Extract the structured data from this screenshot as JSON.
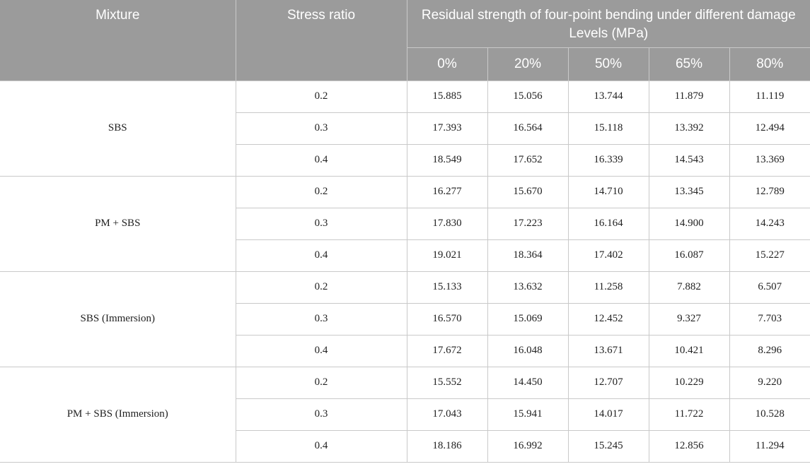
{
  "header": {
    "mixture": "Mixture",
    "stress_ratio": "Stress ratio",
    "group": "Residual strength of four-point bending under different damage Levels (MPa)",
    "levels": [
      "0%",
      "20%",
      "50%",
      "65%",
      "80%"
    ]
  },
  "groups": [
    {
      "mixture": "SBS",
      "rows": [
        {
          "ratio": "0.2",
          "values": [
            "15.885",
            "15.056",
            "13.744",
            "11.879",
            "11.119"
          ]
        },
        {
          "ratio": "0.3",
          "values": [
            "17.393",
            "16.564",
            "15.118",
            "13.392",
            "12.494"
          ]
        },
        {
          "ratio": "0.4",
          "values": [
            "18.549",
            "17.652",
            "16.339",
            "14.543",
            "13.369"
          ]
        }
      ]
    },
    {
      "mixture": "PM + SBS",
      "rows": [
        {
          "ratio": "0.2",
          "values": [
            "16.277",
            "15.670",
            "14.710",
            "13.345",
            "12.789"
          ]
        },
        {
          "ratio": "0.3",
          "values": [
            "17.830",
            "17.223",
            "16.164",
            "14.900",
            "14.243"
          ]
        },
        {
          "ratio": "0.4",
          "values": [
            "19.021",
            "18.364",
            "17.402",
            "16.087",
            "15.227"
          ]
        }
      ]
    },
    {
      "mixture": "SBS (Immersion)",
      "rows": [
        {
          "ratio": "0.2",
          "values": [
            "15.133",
            "13.632",
            "11.258",
            "7.882",
            "6.507"
          ]
        },
        {
          "ratio": "0.3",
          "values": [
            "16.570",
            "15.069",
            "12.452",
            "9.327",
            "7.703"
          ]
        },
        {
          "ratio": "0.4",
          "values": [
            "17.672",
            "16.048",
            "13.671",
            "10.421",
            "8.296"
          ]
        }
      ]
    },
    {
      "mixture": "PM + SBS (Immersion)",
      "rows": [
        {
          "ratio": "0.2",
          "values": [
            "15.552",
            "14.450",
            "12.707",
            "10.229",
            "9.220"
          ]
        },
        {
          "ratio": "0.3",
          "values": [
            "17.043",
            "15.941",
            "14.017",
            "11.722",
            "10.528"
          ]
        },
        {
          "ratio": "0.4",
          "values": [
            "18.186",
            "16.992",
            "15.245",
            "12.856",
            "11.294"
          ]
        }
      ]
    }
  ]
}
